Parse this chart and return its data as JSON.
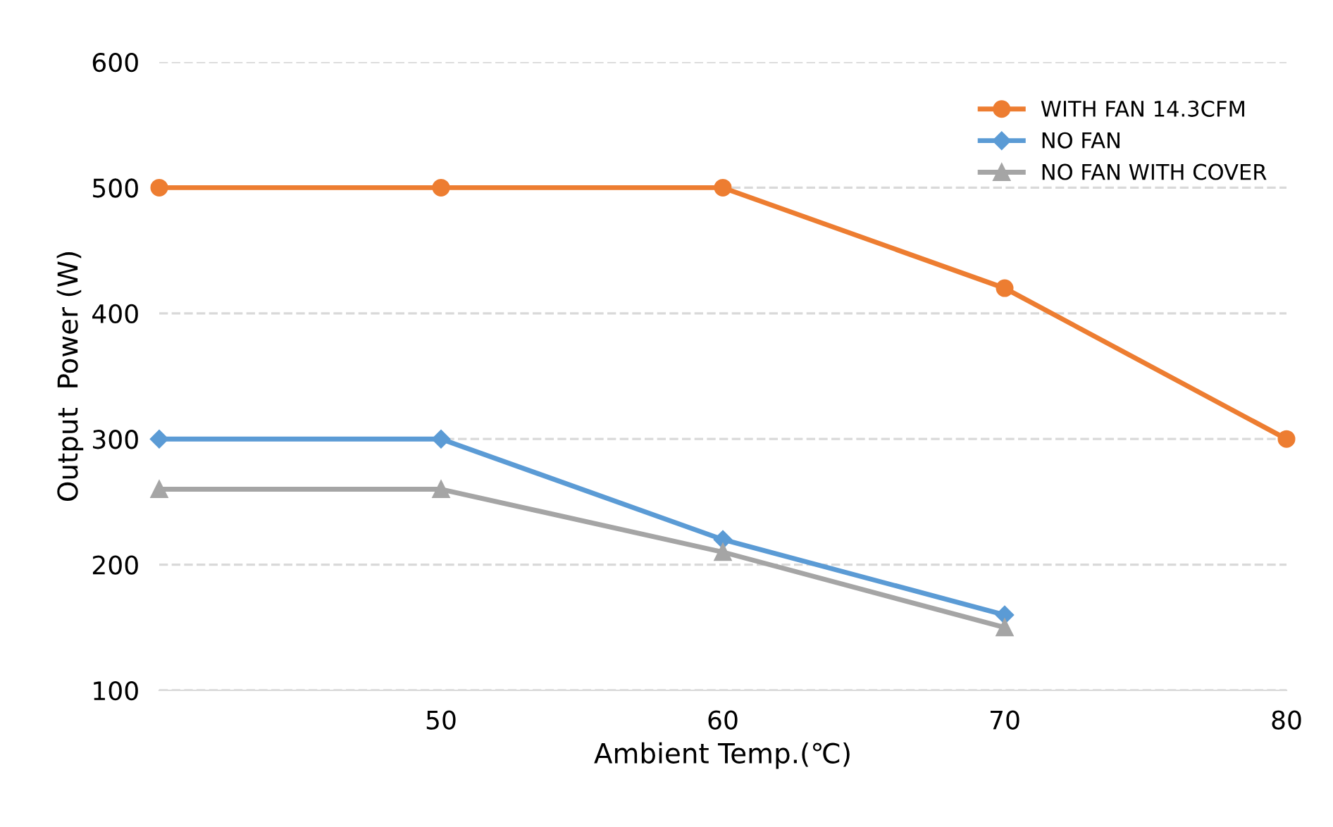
{
  "chart_data": {
    "type": "line",
    "xlabel": "Ambient Temp.(℃)",
    "ylabel": "Output  Power (W)",
    "x": [
      40,
      50,
      60,
      70,
      80
    ],
    "series": [
      {
        "name": "WITH FAN 14.3CFM",
        "color": "#ed7d31",
        "marker": "circle",
        "values": [
          500,
          500,
          500,
          420,
          300
        ]
      },
      {
        "name": "NO FAN",
        "color": "#5b9bd5",
        "marker": "diamond",
        "values": [
          300,
          300,
          220,
          160,
          null
        ]
      },
      {
        "name": "NO FAN WITH COVER",
        "color": "#a5a5a5",
        "marker": "triangle",
        "values": [
          260,
          260,
          210,
          150,
          null
        ]
      }
    ],
    "xlim": [
      40,
      80
    ],
    "xticks": [
      50,
      60,
      70,
      80
    ],
    "ylim": [
      100,
      600
    ],
    "yticks": [
      100,
      200,
      300,
      400,
      500,
      600
    ],
    "grid": "y",
    "legend": "top right",
    "line_style": "solid"
  }
}
